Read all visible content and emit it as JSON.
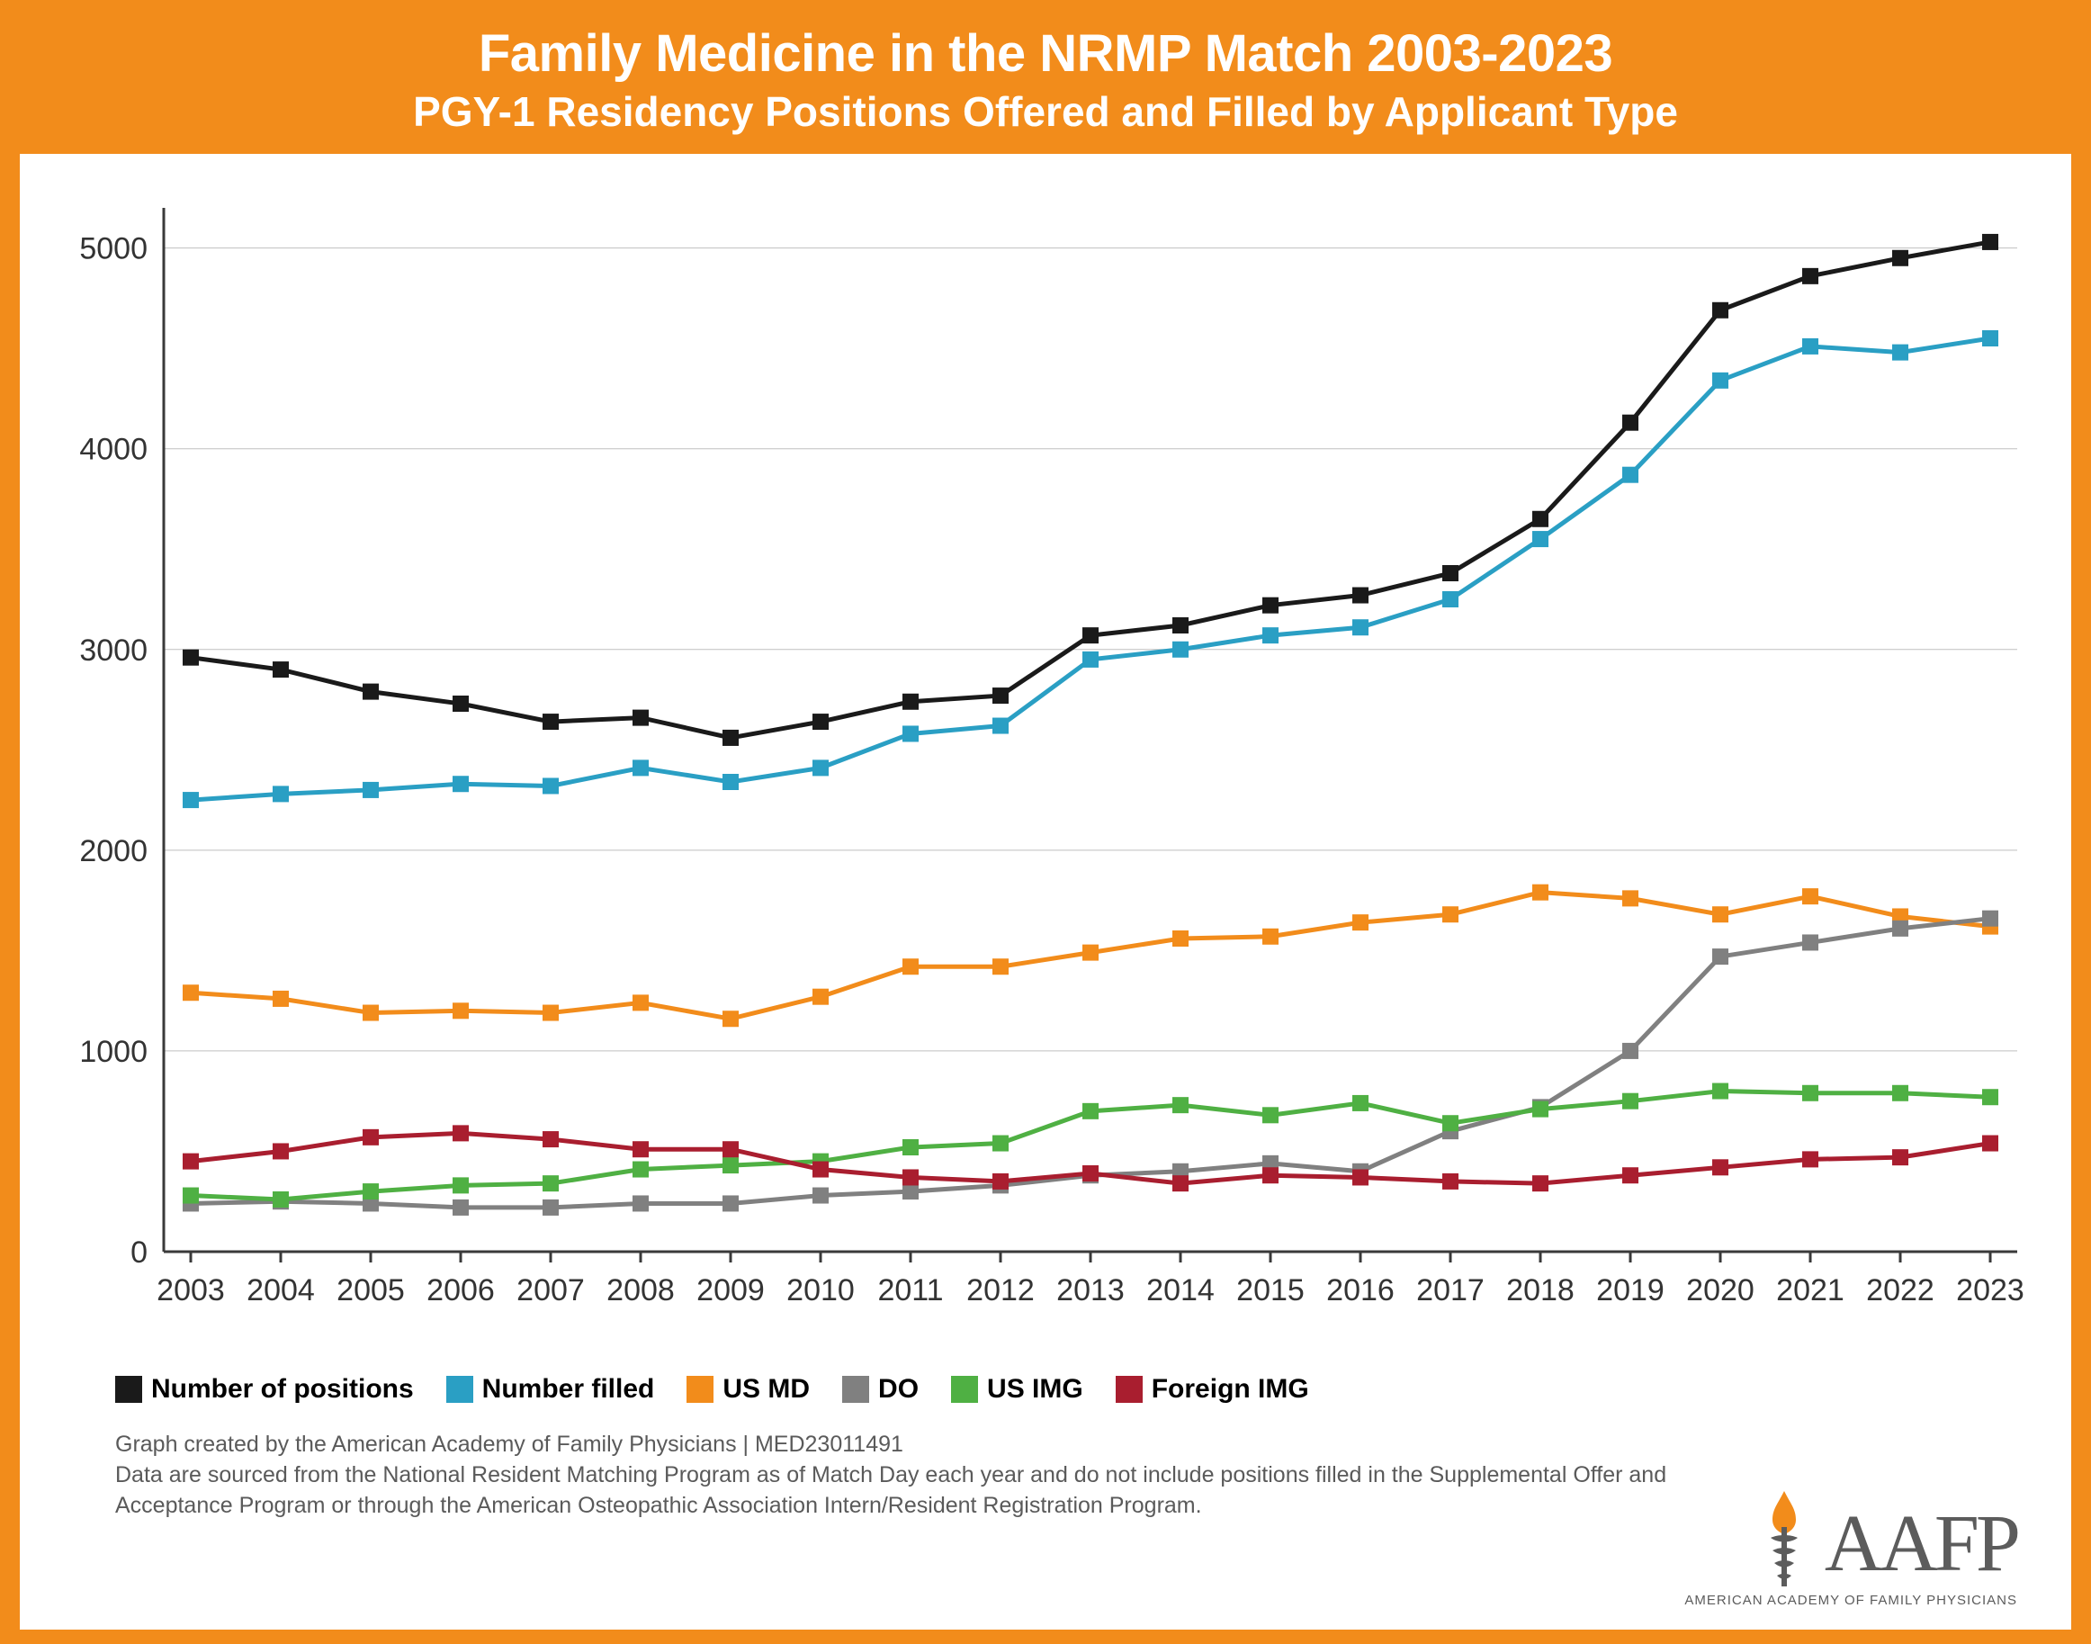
{
  "header": {
    "title": "Family Medicine in the NRMP Match 2003-2023",
    "subtitle": "PGY-1 Residency Positions Offered and Filled by Applicant Type"
  },
  "chart": {
    "type": "line",
    "background_color": "#ffffff",
    "frame_color": "#f28c1b",
    "grid_color": "#bfbfbf",
    "axis_color": "#3a3a3a",
    "tick_fontsize": 34,
    "line_width": 5,
    "marker_size": 9,
    "x": {
      "categories": [
        "2003",
        "2004",
        "2005",
        "2006",
        "2007",
        "2008",
        "2009",
        "2010",
        "2011",
        "2012",
        "2013",
        "2014",
        "2015",
        "2016",
        "2017",
        "2018",
        "2019",
        "2020",
        "2021",
        "2022",
        "2023"
      ]
    },
    "y": {
      "min": 0,
      "max": 5200,
      "ticks": [
        0,
        1000,
        2000,
        3000,
        4000,
        5000
      ]
    },
    "series": [
      {
        "name": "Number of positions",
        "color": "#1a1a1a",
        "marker": "square",
        "values": [
          2960,
          2900,
          2790,
          2730,
          2640,
          2660,
          2560,
          2640,
          2740,
          2770,
          3070,
          3120,
          3220,
          3270,
          3380,
          3650,
          4130,
          4690,
          4860,
          4950,
          5030
        ]
      },
      {
        "name": "Number filled",
        "color": "#2a9fc4",
        "marker": "square",
        "values": [
          2250,
          2280,
          2300,
          2330,
          2320,
          2410,
          2340,
          2410,
          2580,
          2620,
          2950,
          3000,
          3070,
          3110,
          3250,
          3550,
          3870,
          4340,
          4510,
          4480,
          4550
        ]
      },
      {
        "name": "US MD",
        "color": "#f28c1b",
        "marker": "square",
        "values": [
          1290,
          1260,
          1190,
          1200,
          1190,
          1240,
          1160,
          1270,
          1420,
          1420,
          1490,
          1560,
          1570,
          1640,
          1680,
          1790,
          1760,
          1680,
          1770,
          1670,
          1620
        ]
      },
      {
        "name": "DO",
        "color": "#808080",
        "marker": "square",
        "values": [
          240,
          250,
          240,
          220,
          220,
          240,
          240,
          280,
          300,
          330,
          380,
          400,
          440,
          400,
          600,
          720,
          1000,
          1470,
          1540,
          1610,
          1660
        ]
      },
      {
        "name": "US IMG",
        "color": "#4fb043",
        "marker": "square",
        "values": [
          280,
          260,
          300,
          330,
          340,
          410,
          430,
          450,
          520,
          540,
          700,
          730,
          680,
          740,
          640,
          710,
          750,
          800,
          790,
          790,
          770
        ]
      },
      {
        "name": "Foreign IMG",
        "color": "#a91e2f",
        "marker": "square",
        "values": [
          450,
          500,
          570,
          590,
          560,
          510,
          510,
          410,
          370,
          350,
          390,
          340,
          380,
          370,
          350,
          340,
          380,
          420,
          460,
          470,
          540
        ]
      }
    ]
  },
  "legend": {
    "items": [
      "Number of positions",
      "Number filled",
      "US MD",
      "DO",
      "US IMG",
      "Foreign IMG"
    ]
  },
  "footer": {
    "line1": "Graph created by the American Academy of Family Physicians | MED23011491",
    "line2": "Data are sourced from the National Resident Matching Program as of Match Day each year and  do not include positions filled in the Supplemental Offer and Acceptance Program or through the American Osteopathic Association Intern/Resident Registration Program."
  },
  "logo": {
    "text": "AAFP",
    "sub": "AMERICAN ACADEMY OF FAMILY PHYSICIANS",
    "flame_color": "#f28c1b",
    "staff_color": "#5c5c5c"
  }
}
